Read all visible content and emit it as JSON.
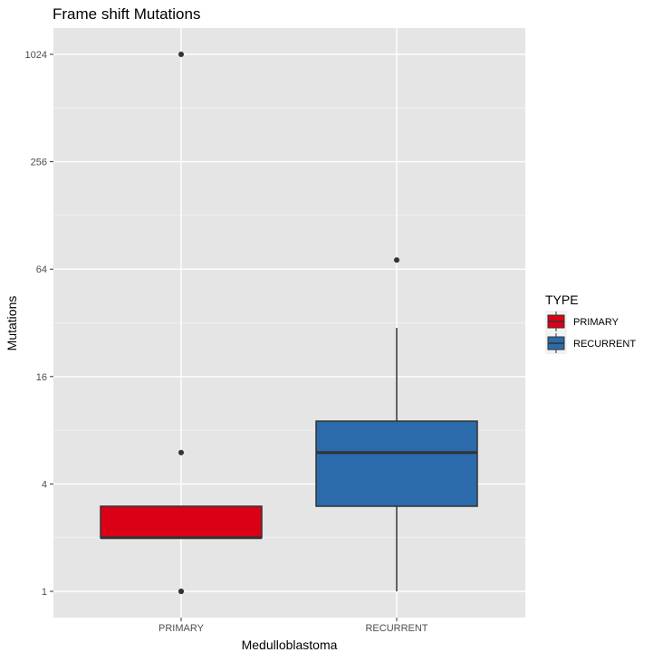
{
  "chart_data": {
    "type": "box",
    "title": "Frame shift Mutations",
    "xlabel": "Medulloblastoma",
    "ylabel": "Mutations",
    "yscale": "log2",
    "ylim": [
      0.83,
      1500
    ],
    "yticks": [
      1,
      4,
      16,
      64,
      256,
      1024
    ],
    "ytick_labels": [
      "1",
      "4",
      "16",
      "64",
      "256",
      "1024"
    ],
    "categories": [
      "PRIMARY",
      "RECURRENT"
    ],
    "grid": true,
    "legend": {
      "title": "TYPE",
      "position": "right",
      "entries": [
        {
          "label": "PRIMARY",
          "color": "#dc0017"
        },
        {
          "label": "RECURRENT",
          "color": "#2b6aab"
        }
      ]
    },
    "boxes": [
      {
        "category": "PRIMARY",
        "color": "#dc0017",
        "whisker_low": 2,
        "q1": 2,
        "median": 2,
        "q3": 3,
        "whisker_high": 3,
        "outliers": [
          1,
          1,
          6,
          1024
        ]
      },
      {
        "category": "RECURRENT",
        "color": "#2b6aab",
        "whisker_low": 1,
        "q1": 3,
        "median": 6,
        "q3": 9,
        "whisker_high": 30,
        "outliers": [
          72
        ]
      }
    ]
  }
}
